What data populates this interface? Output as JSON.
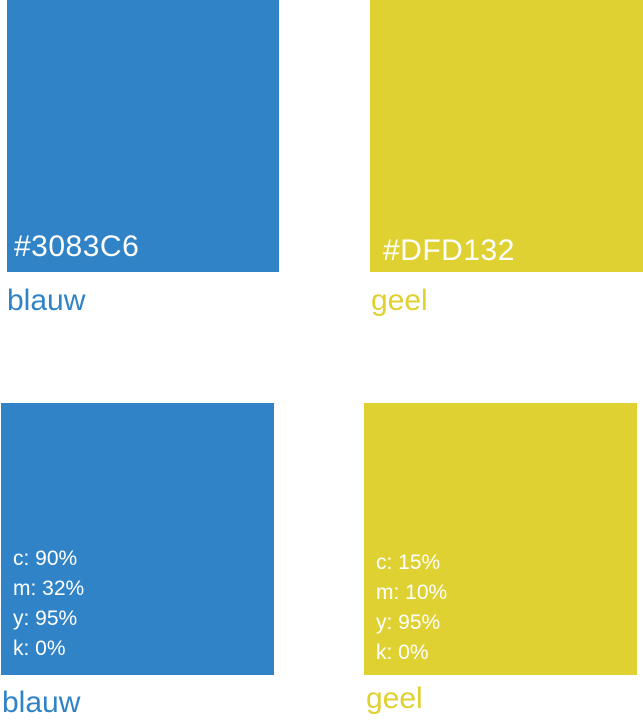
{
  "colors": {
    "blue": "#3083C6",
    "yellow": "#DFD132",
    "text_on_swatch": "#FFFFFF"
  },
  "swatches": {
    "blue_hex": {
      "hex_label": "#3083C6",
      "name": "blauw"
    },
    "yellow_hex": {
      "hex_label": "#DFD132",
      "name": "geel"
    },
    "blue_cmyk": {
      "cmyk": [
        "c: 90%",
        "m: 32%",
        "y: 95%",
        "k: 0%"
      ],
      "name": "blauw"
    },
    "yellow_cmyk": {
      "cmyk": [
        "c: 15%",
        "m: 10%",
        "y: 95%",
        "k: 0%"
      ],
      "name": "geel"
    }
  }
}
